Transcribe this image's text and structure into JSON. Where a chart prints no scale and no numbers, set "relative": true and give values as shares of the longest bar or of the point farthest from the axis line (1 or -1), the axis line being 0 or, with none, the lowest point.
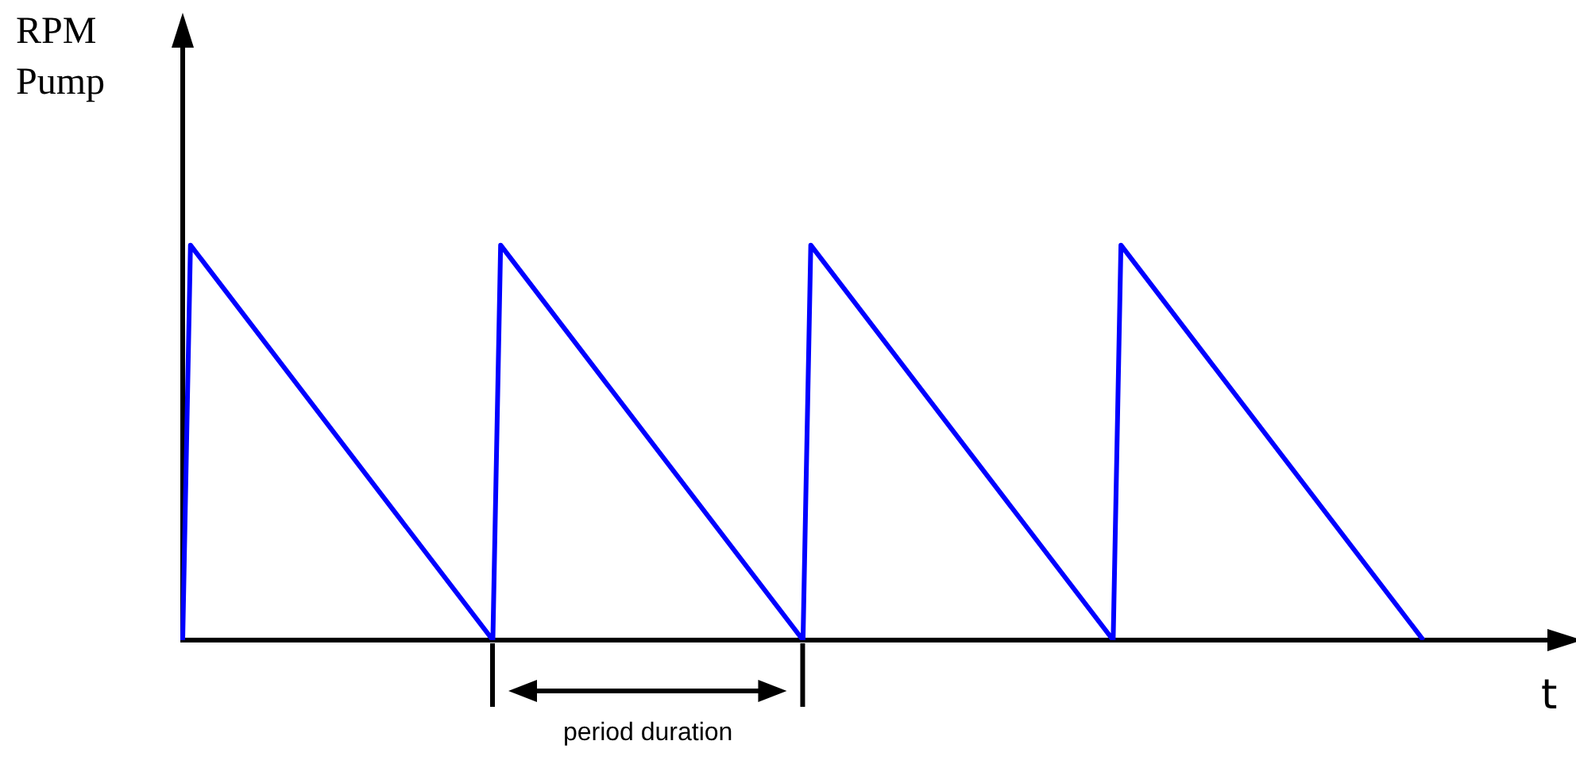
{
  "chart_data": {
    "type": "line",
    "relative": true,
    "ylabel": "RPM\nPump",
    "xlabel": "t",
    "categories": [
      null,
      null,
      null,
      null,
      null,
      null,
      null,
      null,
      null,
      null,
      null,
      null,
      null,
      null,
      null,
      null,
      null,
      null,
      null,
      null,
      null,
      null,
      null,
      null,
      null,
      null,
      null,
      null,
      null,
      null,
      null,
      null,
      null,
      null,
      null,
      null,
      null,
      null,
      null,
      null,
      null,
      null,
      null,
      null,
      null,
      null,
      null,
      null,
      null,
      null,
      null,
      null,
      null,
      null,
      null,
      null,
      null,
      null,
      null,
      null,
      null,
      null,
      null,
      null,
      null,
      null,
      null,
      null,
      null,
      null,
      null,
      null,
      null,
      null,
      null,
      null,
      null,
      null,
      null,
      null,
      null,
      null,
      null,
      null,
      null,
      null,
      null,
      null,
      null,
      null,
      null,
      null,
      null,
      null,
      null,
      null,
      null,
      null,
      null,
      null,
      null,
      null,
      null,
      null,
      null,
      null,
      null,
      null,
      null,
      null,
      null,
      null,
      null,
      null,
      null,
      null,
      null,
      null,
      null,
      null,
      null,
      null,
      null,
      null,
      null,
      null,
      null,
      null,
      null,
      null,
      null,
      null,
      null,
      null,
      null,
      null,
      null,
      null,
      null,
      null,
      null,
      null,
      null,
      null,
      null,
      null,
      null,
      null,
      null,
      null,
      null,
      null,
      null,
      null,
      null,
      null,
      null,
      null,
      null,
      null,
      null,
      null,
      null,
      null,
      null,
      null,
      null,
      null,
      null,
      null,
      null,
      null,
      null,
      null,
      null,
      null,
      null
    ],
    "series": [
      {
        "color": "#0000ff",
        "values": [
          0,
          1,
          null,
          null,
          null,
          null,
          null,
          null,
          null,
          null,
          null,
          null,
          null,
          null,
          null,
          null,
          null,
          null,
          null,
          null,
          null,
          null,
          null,
          null,
          null,
          null,
          null,
          null,
          null,
          null,
          null,
          null,
          null,
          null,
          null,
          null,
          null,
          null,
          null,
          null,
          0,
          1,
          null,
          null,
          null,
          null,
          null,
          null,
          null,
          null,
          null,
          null,
          null,
          null,
          null,
          null,
          null,
          null,
          null,
          null,
          null,
          null,
          null,
          null,
          null,
          null,
          null,
          null,
          null,
          null,
          null,
          null,
          null,
          null,
          null,
          null,
          null,
          null,
          null,
          null,
          0,
          1,
          null,
          null,
          null,
          null,
          null,
          null,
          null,
          null,
          null,
          null,
          null,
          null,
          null,
          null,
          null,
          null,
          null,
          null,
          null,
          null,
          null,
          null,
          null,
          null,
          null,
          null,
          null,
          null,
          null,
          null,
          null,
          null,
          null,
          null,
          null,
          null,
          null,
          null,
          0,
          1,
          null,
          null,
          null,
          null,
          null,
          null,
          null,
          null,
          null,
          null,
          null,
          null,
          null,
          null,
          null,
          null,
          null,
          null,
          null,
          null,
          null,
          null,
          null,
          null,
          null,
          null,
          null,
          null,
          null,
          null,
          null,
          null,
          null,
          null,
          null,
          null,
          null,
          null,
          0,
          null,
          null,
          null,
          null,
          null,
          null,
          null,
          null,
          null,
          null,
          null,
          null,
          null,
          null,
          null,
          null
        ]
      }
    ],
    "annotations": [
      "period duration"
    ],
    "grid": false,
    "legend": false,
    "marker": "none",
    "line_style": "solid"
  }
}
